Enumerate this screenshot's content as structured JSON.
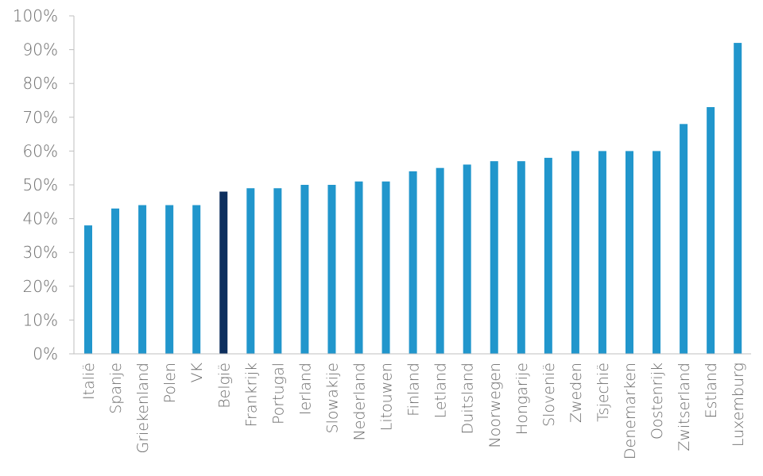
{
  "chart_data": {
    "type": "bar",
    "title": "",
    "xlabel": "",
    "ylabel": "",
    "categories": [
      "Italië",
      "Spanje",
      "Griekenland",
      "Polen",
      "VK",
      "België",
      "Frankrijk",
      "Portugal",
      "Ierland",
      "Slowakije",
      "Nederland",
      "Litouwen",
      "Finland",
      "Letland",
      "Duitsland",
      "Noorwegen",
      "Hongarije",
      "Slovenië",
      "Zweden",
      "Tsjechië",
      "Denemarken",
      "Oostenrijk",
      "Zwitserland",
      "Estland",
      "Luxemburg"
    ],
    "values": [
      38,
      43,
      44,
      44,
      44,
      48,
      49,
      49,
      50,
      50,
      51,
      51,
      54,
      55,
      56,
      57,
      57,
      58,
      60,
      60,
      60,
      60,
      68,
      73,
      92
    ],
    "highlight_category": "België",
    "ylim": [
      0,
      100
    ],
    "yticks": [
      0,
      10,
      20,
      30,
      40,
      50,
      60,
      70,
      80,
      90,
      100
    ],
    "ytick_labels": [
      "0%",
      "10%",
      "20%",
      "30%",
      "40%",
      "50%",
      "60%",
      "70%",
      "80%",
      "90%",
      "100%"
    ],
    "grid": false,
    "colors": {
      "bar": "#2196cc",
      "highlight": "#0d2f5e",
      "axis": "#bfbfbf",
      "text": "#6b6b6b"
    }
  }
}
